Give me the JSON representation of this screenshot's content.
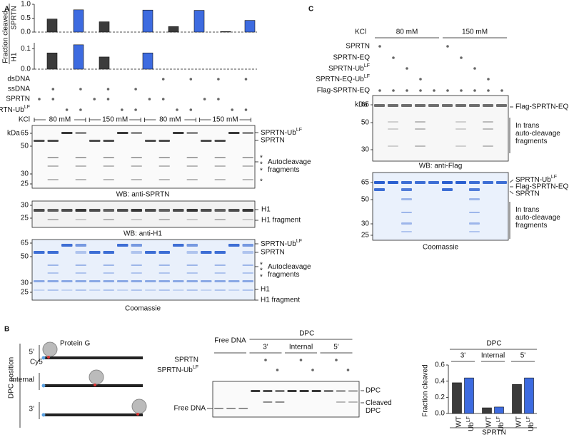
{
  "panel_a": {
    "label": "A",
    "y_title": "Fraction cleaved",
    "charts": [
      {
        "type": "bar",
        "name": "SPRTN",
        "ylim": [
          0,
          1
        ],
        "yticks": [
          {
            "value": 0,
            "label": "0.0"
          },
          {
            "value": 0.5,
            "label": "0.5"
          },
          {
            "value": 1,
            "label": "1.0"
          }
        ],
        "values": [
          0.47,
          0.8,
          0.37,
          0.79,
          0.2,
          0.78,
          0.02,
          0.42
        ],
        "colors": [
          "#3b3b3b",
          "#3d6be0",
          "#3b3b3b",
          "#3d6be0",
          "#3b3b3b",
          "#3d6be0",
          "#3b3b3b",
          "#3d6be0"
        ]
      },
      {
        "type": "bar",
        "name": "H1",
        "ylim": [
          0,
          0.13
        ],
        "yticks": [
          {
            "value": 0,
            "label": "0.0"
          },
          0.1
        ],
        "values": [
          0.08,
          0.12,
          0.06,
          0.08,
          0,
          0,
          0,
          0
        ],
        "colors": [
          "#3b3b3b",
          "#3d6be0",
          "#3b3b3b",
          "#3d6be0",
          "#3b3b3b",
          "#3d6be0",
          "#3b3b3b",
          "#3d6be0"
        ]
      }
    ],
    "rows": [
      "dsDNA",
      "ssDNA",
      "SPRTN",
      {
        "text": "SPRTN-Ub",
        "sup": "LF"
      }
    ],
    "kcl": {
      "label": "KCl",
      "groups": [
        "80 mM",
        "150 mM",
        "80 mM",
        "150 mM"
      ]
    },
    "gels": [
      {
        "unit": "kDa",
        "markers": [
          65,
          50,
          30,
          25
        ],
        "labels": [
          {
            "text": "SPRTN-Ub",
            "sup": "LF"
          },
          "SPRTN",
          [
            "Autocleavage",
            "fragments"
          ]
        ],
        "asterisks": [
          "*",
          "*",
          "*",
          "*"
        ],
        "caption": "WB: anti-SPRTN"
      },
      {
        "markers": [
          30,
          25
        ],
        "labels": [
          "H1",
          "H1 fragment"
        ],
        "caption": "WB: anti-H1"
      },
      {
        "markers": [
          65,
          50,
          30,
          25
        ],
        "labels": [
          {
            "text": "SPRTN-Ub",
            "sup": "LF"
          },
          "SPRTN",
          [
            "Autocleavage",
            "fragments"
          ],
          "H1",
          "H1 fragment"
        ],
        "asterisks": [
          "*",
          "*",
          "*"
        ],
        "caption": "Coomassie"
      }
    ]
  },
  "panel_b": {
    "label": "B",
    "diagram": {
      "axis_label": "DPC position",
      "positions": [
        "5'",
        "Internal",
        "3'"
      ],
      "protein": "Protein G",
      "dye": "Cy5"
    },
    "gel": {
      "free": "Free DNA",
      "dpc": "DPC",
      "groups": [
        "3'",
        "Internal",
        "5'"
      ],
      "rows": [
        "SPRTN",
        {
          "text": "SPRTN-Ub",
          "sup": "LF"
        }
      ],
      "labels": [
        "DPC",
        [
          "Cleaved",
          "DPC"
        ],
        "Free DNA"
      ]
    },
    "chart": {
      "type": "bar",
      "header": "DPC",
      "groups": [
        "3'",
        "Internal",
        "5'"
      ],
      "y_title": "Fraction cleaved",
      "ylim": [
        0,
        0.6
      ],
      "yticks": [
        {
          "value": 0,
          "label": "0.0"
        },
        0.2,
        0.4,
        0.6
      ],
      "categories": [
        "WT",
        {
          "text": "Ub",
          "sup": "LF"
        },
        "WT",
        {
          "text": "Ub",
          "sup": "LF"
        },
        "WT",
        {
          "text": "Ub",
          "sup": "LF"
        }
      ],
      "values": [
        0.38,
        0.44,
        0.07,
        0.08,
        0.36,
        0.44
      ],
      "colors": [
        "#3b3b3b",
        "#3d6be0",
        "#3b3b3b",
        "#3d6be0",
        "#3b3b3b",
        "#3d6be0"
      ],
      "x_title": "SPRTN"
    }
  },
  "panel_c": {
    "label": "C",
    "kcl": {
      "label": "KCl",
      "groups": [
        "80 mM",
        "150 mM"
      ]
    },
    "rows": [
      "SPRTN",
      "SPRTN-EQ",
      {
        "text": "SPRTN-Ub",
        "sup": "LF"
      },
      {
        "text": "SPRTN-EQ-Ub",
        "sup": "LF"
      },
      "Flag-SPRTN-EQ"
    ],
    "gels": [
      {
        "unit": "kDa",
        "markers": [
          65,
          50,
          30
        ],
        "labels": [
          "Flag-SPRTN-EQ",
          [
            "In trans",
            "auto-cleavage",
            "fragments"
          ]
        ],
        "caption": "WB: anti-Flag"
      },
      {
        "markers": [
          65,
          50,
          30,
          25
        ],
        "labels": [
          {
            "text": "SPRTN-Ub",
            "sup": "LF"
          },
          "Flag-SPRTN-EQ",
          "SPRTN",
          [
            "In trans",
            "auto-cleavage",
            "fragments"
          ]
        ],
        "caption": "Coomassie"
      }
    ]
  }
}
